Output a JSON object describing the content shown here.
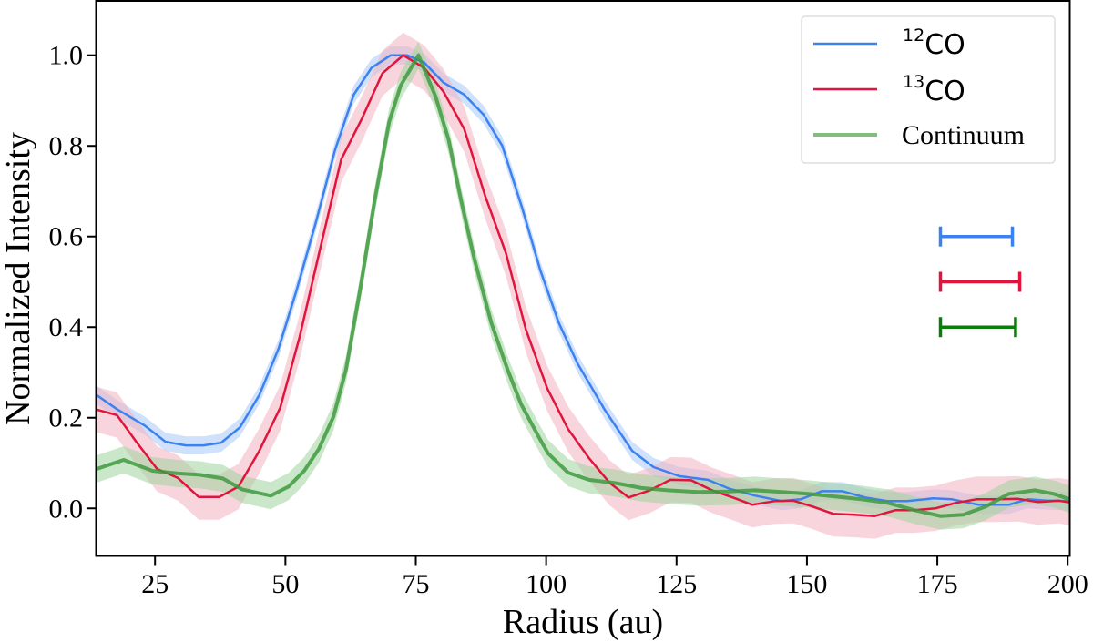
{
  "chart_data": {
    "type": "line",
    "title": "",
    "xlabel": "Radius (au)",
    "ylabel": "Normalized Intensity",
    "xlim": [
      13.7,
      200.4
    ],
    "ylim": [
      -0.105,
      1.12
    ],
    "xticks": [
      25,
      50,
      75,
      100,
      125,
      150,
      175,
      200
    ],
    "xtick_labels": [
      "25",
      "50",
      "75",
      "100",
      "125",
      "150",
      "175",
      "200"
    ],
    "yticks": [
      0.0,
      0.2,
      0.4,
      0.6,
      0.8,
      1.0
    ],
    "ytick_labels": [
      "0.0",
      "0.2",
      "0.4",
      "0.6",
      "0.8",
      "1.0"
    ],
    "grid": false,
    "legend_placement": "top-right",
    "series": [
      {
        "name": "12CO",
        "legend_sup": "12",
        "legend_main": "CO",
        "color": "#3b82f0",
        "band_color": "#a9c8f8",
        "uncertainty": 0.02,
        "x": [
          13.8,
          17.7,
          23,
          27,
          30.9,
          34.3,
          37.7,
          41.3,
          45,
          48.7,
          52.1,
          55.8,
          59.5,
          63.1,
          66.5,
          70.2,
          73.3,
          76.6,
          80.3,
          84.3,
          88,
          91.6,
          95.4,
          98.9,
          102.4,
          106,
          111.2,
          116.5,
          120.6,
          125.6,
          131,
          135,
          140.1,
          145.2,
          148.8,
          152.8,
          156.8,
          161.2,
          165.5,
          169.2,
          174.2,
          177.8,
          182.9,
          188.7,
          192.3,
          196,
          200.4
        ],
        "y": [
          0.25,
          0.219,
          0.183,
          0.147,
          0.139,
          0.139,
          0.145,
          0.179,
          0.25,
          0.353,
          0.48,
          0.63,
          0.79,
          0.913,
          0.972,
          1.0,
          1.0,
          0.984,
          0.94,
          0.913,
          0.869,
          0.8,
          0.663,
          0.525,
          0.41,
          0.32,
          0.218,
          0.127,
          0.091,
          0.071,
          0.063,
          0.044,
          0.028,
          0.016,
          0.02,
          0.038,
          0.038,
          0.024,
          0.016,
          0.016,
          0.022,
          0.02,
          0.008,
          0.008,
          0.02,
          0.017,
          0.016
        ]
      },
      {
        "name": "13CO",
        "legend_sup": "13",
        "legend_main": "CO",
        "color": "#e0143c",
        "band_color": "#f3b3c0",
        "uncertainty": 0.05,
        "x": [
          13.8,
          17.7,
          21.4,
          25.4,
          29.4,
          33.4,
          37.3,
          41,
          45,
          49,
          52.7,
          56.7,
          60.7,
          64.7,
          68.6,
          72.6,
          76.6,
          80.3,
          84.3,
          88.3,
          92.3,
          96.1,
          100.2,
          104.2,
          108.2,
          112.2,
          115.8,
          119.9,
          123.8,
          127.8,
          131.8,
          135.8,
          139.5,
          143.8,
          147.4,
          151.1,
          155,
          159.1,
          163,
          167,
          170.6,
          174.6,
          178.5,
          182.5,
          186.3,
          190.5,
          194.3,
          198.3,
          200.4
        ],
        "y": [
          0.218,
          0.206,
          0.147,
          0.087,
          0.067,
          0.025,
          0.025,
          0.048,
          0.127,
          0.222,
          0.377,
          0.575,
          0.77,
          0.861,
          0.96,
          1.0,
          0.972,
          0.92,
          0.837,
          0.69,
          0.563,
          0.395,
          0.265,
          0.175,
          0.111,
          0.056,
          0.024,
          0.04,
          0.063,
          0.062,
          0.04,
          0.024,
          0.008,
          0.016,
          0.017,
          0.004,
          -0.012,
          -0.014,
          -0.017,
          -0.004,
          -0.004,
          0.0,
          0.012,
          0.02,
          0.02,
          0.021,
          0.014,
          0.017,
          0.013
        ]
      },
      {
        "name": "Continuum",
        "legend_main": "Continuum",
        "color": "#3f9a3f",
        "band_color": "#9fd39f",
        "uncertainty": 0.03,
        "x": [
          13.8,
          19,
          24.5,
          29.4,
          33.6,
          38,
          41.7,
          47.2,
          50.6,
          53.6,
          56.4,
          59.2,
          61.6,
          64.4,
          67.1,
          69.9,
          72.1,
          75.5,
          78.8,
          81.3,
          83.7,
          86.2,
          89.5,
          92.6,
          95.2,
          98.7,
          100.4,
          104.2,
          108.2,
          113.2,
          118.3,
          123.3,
          129.2,
          135,
          140,
          145.2,
          150.3,
          155.4,
          160.5,
          165.5,
          170.6,
          175.6,
          180,
          184.3,
          188.7,
          193.7,
          197.3,
          200.4
        ],
        "y": [
          0.087,
          0.107,
          0.083,
          0.077,
          0.074,
          0.066,
          0.042,
          0.028,
          0.048,
          0.083,
          0.131,
          0.202,
          0.306,
          0.488,
          0.679,
          0.853,
          0.933,
          1.0,
          0.909,
          0.813,
          0.679,
          0.552,
          0.409,
          0.306,
          0.23,
          0.155,
          0.121,
          0.079,
          0.063,
          0.056,
          0.045,
          0.04,
          0.036,
          0.037,
          0.04,
          0.036,
          0.032,
          0.026,
          0.02,
          0.012,
          -0.004,
          -0.017,
          -0.014,
          0.004,
          0.032,
          0.04,
          0.032,
          0.02
        ]
      }
    ],
    "beam_bars": [
      {
        "series": "12CO",
        "color": "#3b82f0",
        "x_start": 175.6,
        "x_end": 189.4,
        "y": 0.6
      },
      {
        "series": "13CO",
        "color": "#e0143c",
        "x_start": 175.6,
        "x_end": 190.8,
        "y": 0.5
      },
      {
        "series": "Continuum",
        "color": "#0a7d0a",
        "x_start": 175.6,
        "x_end": 190.0,
        "y": 0.4
      }
    ]
  }
}
